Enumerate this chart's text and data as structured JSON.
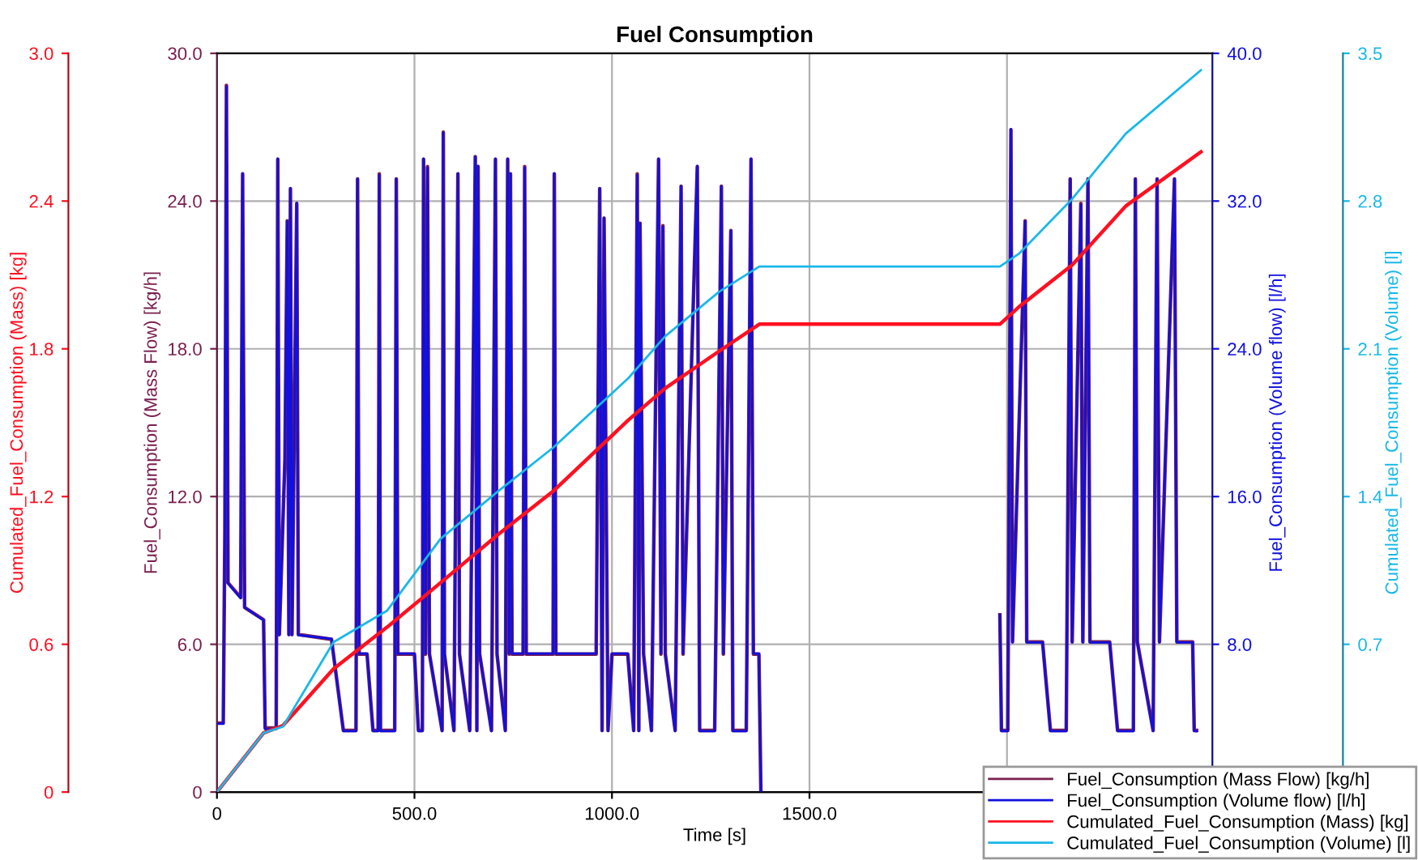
{
  "chart_data": [
    {
      "type": "line",
      "title": "Fuel Consumption",
      "xlabel": "Time [s]",
      "ylabel": "Fuel_Consumption (Mass Flow) [kg/h]",
      "y2label": "Fuel_Consumption (Volume flow) [l/h]",
      "xlim": [
        0,
        2520
      ],
      "xticks": [
        0,
        {
          "value": 500,
          "label": "500.0"
        },
        {
          "value": 1000,
          "label": "1000.0"
        },
        {
          "value": 1500,
          "label": "1500.0"
        },
        {
          "value": 2000,
          "label": null
        }
      ],
      "ylim": [
        0,
        30
      ],
      "yticks": [
        0,
        {
          "value": 6,
          "label": "6.0"
        },
        {
          "value": 12,
          "label": "12.0"
        },
        {
          "value": 18,
          "label": "18.0"
        },
        {
          "value": 24,
          "label": "24.0"
        },
        {
          "value": 30,
          "label": "30.0"
        }
      ],
      "y2lim": [
        0,
        40
      ],
      "y2ticks": [
        {
          "value": 8,
          "label": "8.0"
        },
        {
          "value": 16,
          "label": "16.0"
        },
        {
          "value": 24,
          "label": "24.0"
        },
        {
          "value": 32,
          "label": "32.0"
        },
        {
          "value": 40,
          "label": "40.0"
        }
      ],
      "grid": true,
      "legend": "bottom right",
      "marker": "none",
      "line_style": "solid",
      "series": [
        {
          "name": "Fuel_Consumption (Mass Flow) [kg/h]",
          "color": "#7a1f4f",
          "x": [
            0,
            16,
            20,
            24,
            28,
            60,
            65,
            70,
            118,
            122,
            150,
            154,
            158,
            172,
            178,
            182,
            186,
            190,
            202,
            206,
            290,
            320,
            352,
            356,
            360,
            380,
            395,
            408,
            411,
            414,
            450,
            454,
            458,
            500,
            510,
            520,
            523,
            528,
            533,
            538,
            570,
            573,
            576,
            600,
            610,
            614,
            640,
            654,
            658,
            661,
            665,
            695,
            705,
            709,
            730,
            736,
            740,
            743,
            747,
            775,
            779,
            783,
            851,
            854,
            858,
            960,
            969,
            975,
            980,
            990,
            1000,
            1040,
            1055,
            1064,
            1068,
            1071,
            1080,
            1100,
            1118,
            1124,
            1129,
            1135,
            1160,
            1175,
            1180,
            1216,
            1222,
            1260,
            1277,
            1282,
            1301,
            1306,
            1340,
            1352,
            1358,
            1372,
            1377,
            1680,
            1982,
            1986,
            2002,
            2010,
            2014,
            2046,
            2050,
            2090,
            2110,
            2150,
            2160,
            2165,
            2187,
            2192,
            2205,
            2210,
            2260,
            2280,
            2320,
            2325,
            2330,
            2370,
            2380,
            2386,
            2424,
            2430,
            2470,
            2474,
            2480
          ],
          "values": [
            2.8,
            2.8,
            10.5,
            28.7,
            8.5,
            7.9,
            25.1,
            7.5,
            7.0,
            2.6,
            2.6,
            25.7,
            6.4,
            13.5,
            23.2,
            6.4,
            24.5,
            6.4,
            23.9,
            6.4,
            6.2,
            2.5,
            2.5,
            24.9,
            5.6,
            5.6,
            2.5,
            2.5,
            25.1,
            2.5,
            2.5,
            24.9,
            5.6,
            5.6,
            2.5,
            2.5,
            25.7,
            5.6,
            25.4,
            5.6,
            2.5,
            26.8,
            5.6,
            2.5,
            25.1,
            5.6,
            2.5,
            25.8,
            2.5,
            25.4,
            5.6,
            2.5,
            25.7,
            5.6,
            2.5,
            25.7,
            5.6,
            25.1,
            5.6,
            5.6,
            25.4,
            5.6,
            5.6,
            25.1,
            5.6,
            5.6,
            24.5,
            2.5,
            23.3,
            2.5,
            5.6,
            5.6,
            2.5,
            25.1,
            2.5,
            23.1,
            5.6,
            2.5,
            25.7,
            5.6,
            23.0,
            5.6,
            2.5,
            24.6,
            5.6,
            25.4,
            2.5,
            2.5,
            24.6,
            5.6,
            22.8,
            2.5,
            2.5,
            25.7,
            5.6,
            5.6,
            0,
            null,
            7.2,
            2.5,
            2.5,
            26.9,
            6.1,
            23.2,
            6.1,
            6.1,
            2.5,
            2.5,
            24.9,
            6.1,
            23.9,
            6.1,
            24.9,
            6.1,
            6.1,
            2.5,
            2.5,
            24.9,
            6.1,
            2.5,
            24.9,
            6.1,
            24.9,
            6.1,
            6.1,
            2.5,
            2.5
          ]
        },
        {
          "name": "Fuel_Consumption (Volume flow) [l/h]",
          "color": "#1010e0",
          "axis": "y2",
          "x": [
            0,
            16,
            20,
            24,
            28,
            60,
            65,
            70,
            118,
            122,
            150,
            154,
            158,
            172,
            178,
            182,
            186,
            190,
            202,
            206,
            290,
            320,
            352,
            356,
            360,
            380,
            395,
            408,
            411,
            414,
            450,
            454,
            458,
            500,
            510,
            520,
            523,
            528,
            533,
            538,
            570,
            573,
            576,
            600,
            610,
            614,
            640,
            654,
            658,
            661,
            665,
            695,
            705,
            709,
            730,
            736,
            740,
            743,
            747,
            775,
            779,
            783,
            851,
            854,
            858,
            960,
            969,
            975,
            980,
            990,
            1000,
            1040,
            1055,
            1064,
            1068,
            1071,
            1080,
            1100,
            1118,
            1124,
            1129,
            1135,
            1160,
            1175,
            1180,
            1216,
            1222,
            1260,
            1277,
            1282,
            1301,
            1306,
            1340,
            1352,
            1358,
            1372,
            1377,
            1680,
            1982,
            1986,
            2002,
            2010,
            2014,
            2046,
            2050,
            2090,
            2110,
            2150,
            2160,
            2165,
            2187,
            2192,
            2205,
            2210,
            2260,
            2280,
            2320,
            2325,
            2330,
            2370,
            2380,
            2386,
            2424,
            2430,
            2470,
            2474,
            2480
          ],
          "values": [
            3.7,
            3.7,
            14,
            38.2,
            11.3,
            10.5,
            33.5,
            10,
            9.3,
            3.4,
            3.4,
            34.3,
            8.5,
            18,
            30.9,
            8.5,
            32.7,
            8.5,
            31.9,
            8.5,
            8.3,
            3.3,
            3.3,
            33.2,
            7.5,
            7.5,
            3.3,
            3.3,
            33.4,
            3.3,
            3.3,
            33.2,
            7.5,
            7.5,
            3.3,
            3.3,
            34.3,
            7.5,
            33.8,
            7.5,
            3.3,
            35.7,
            7.5,
            3.3,
            33.5,
            7.5,
            3.3,
            34.4,
            3.3,
            33.9,
            7.5,
            3.3,
            34.3,
            7.5,
            3.3,
            34.3,
            7.5,
            33.5,
            7.5,
            7.5,
            33.8,
            7.5,
            7.5,
            33.5,
            7.5,
            7.5,
            32.7,
            3.3,
            31.1,
            3.3,
            7.5,
            7.5,
            3.3,
            33.4,
            3.3,
            30.8,
            7.5,
            3.3,
            34.3,
            7.5,
            30.6,
            7.5,
            3.3,
            32.8,
            7.5,
            33.9,
            3.3,
            3.3,
            32.8,
            7.5,
            30.4,
            3.3,
            3.3,
            34.3,
            7.5,
            7.5,
            0,
            null,
            9.6,
            3.3,
            3.3,
            35.9,
            8.1,
            30.9,
            8.1,
            8.1,
            3.3,
            3.3,
            33.2,
            8.1,
            31.8,
            8.1,
            33.2,
            8.1,
            8.1,
            3.3,
            3.3,
            33.2,
            8.1,
            3.3,
            33.2,
            8.1,
            33.2,
            8.1,
            8.1,
            3.3,
            3.3
          ]
        }
      ]
    },
    {
      "type": "line",
      "tick_labels": "y",
      "ylabel": "Cumulated_Fuel_Consumption (Mass) [kg]",
      "y2label": "Cumulated_Fuel_Consumption (Volume) [l]",
      "xlim": [
        0,
        2520
      ],
      "ylim": [
        0,
        3
      ],
      "yticks": [
        0,
        0.6,
        1.2,
        1.8,
        2.4,
        {
          "value": 3,
          "label": "3.0"
        }
      ],
      "y2lim": [
        0,
        3.5
      ],
      "y2ticks": [
        0.7,
        1.4,
        2.1,
        2.8,
        3.5
      ],
      "legend": "bottom right",
      "marker": "none",
      "line_style": "solid",
      "series": [
        {
          "name": "Cumulated_Fuel_Consumption (Mass) [kg]",
          "color": "#ff1020",
          "x": [
            0,
            118,
            167,
            295,
            431,
            566,
            715,
            850,
            1041,
            1135,
            1271,
            1373,
            1982,
            2030,
            2165,
            2301,
            2491
          ],
          "values": [
            0,
            0.24,
            0.27,
            0.5,
            0.67,
            0.85,
            1.05,
            1.22,
            1.51,
            1.64,
            1.79,
            1.9,
            1.9,
            1.97,
            2.14,
            2.38,
            2.6
          ]
        },
        {
          "name": "Cumulated_Fuel_Consumption (Volume) [l]",
          "color": "#18b8e8",
          "axis": "y2",
          "x": [
            0,
            118,
            167,
            295,
            431,
            566,
            715,
            850,
            1041,
            1135,
            1271,
            1373,
            1982,
            2030,
            2165,
            2301,
            2491
          ],
          "values": [
            0,
            0.28,
            0.31,
            0.71,
            0.86,
            1.2,
            1.43,
            1.63,
            1.96,
            2.16,
            2.37,
            2.49,
            2.49,
            2.55,
            2.81,
            3.12,
            3.42
          ]
        }
      ]
    }
  ]
}
